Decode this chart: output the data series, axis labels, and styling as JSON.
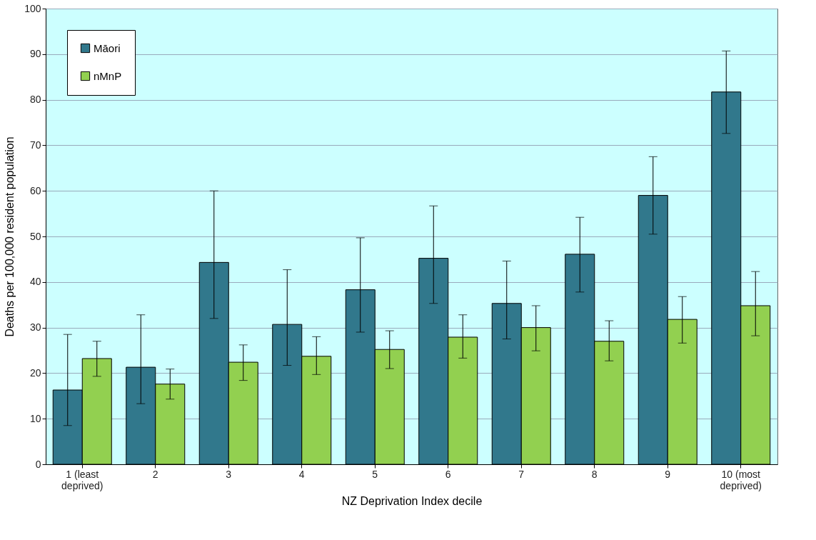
{
  "chart_data": {
    "type": "bar",
    "xlabel": "NZ Deprivation Index decile",
    "ylabel": "Deaths per 100,000 resident population",
    "categories": [
      "1 (least\ndeprived)",
      "2",
      "3",
      "4",
      "5",
      "6",
      "7",
      "8",
      "9",
      "10 (most\ndeprived)"
    ],
    "series": [
      {
        "name": "Māori",
        "color": "#31788c",
        "values": [
          16.3,
          21.3,
          44.3,
          30.7,
          38.3,
          45.2,
          35.3,
          46.1,
          59,
          81.7
        ],
        "errors": [
          [
            8.5,
            28.5
          ],
          [
            13.3,
            32.8
          ],
          [
            32,
            60
          ],
          [
            21.7,
            42.7
          ],
          [
            29,
            49.7
          ],
          [
            35.3,
            56.7
          ],
          [
            27.5,
            44.6
          ],
          [
            37.8,
            54.2
          ],
          [
            50.5,
            67.5
          ],
          [
            72.6,
            90.7
          ]
        ]
      },
      {
        "name": "nMnP",
        "color": "#92d050",
        "values": [
          23.2,
          17.6,
          22.4,
          23.7,
          25.2,
          27.9,
          30,
          27,
          31.8,
          34.8
        ],
        "errors": [
          [
            19.3,
            27
          ],
          [
            14.3,
            20.9
          ],
          [
            18.4,
            26.2
          ],
          [
            19.7,
            28
          ],
          [
            21,
            29.3
          ],
          [
            23.3,
            32.8
          ],
          [
            24.9,
            34.8
          ],
          [
            22.7,
            31.5
          ],
          [
            26.6,
            36.8
          ],
          [
            28.2,
            42.3
          ]
        ]
      }
    ],
    "ylim": [
      0,
      100
    ],
    "yticks": [
      0,
      10,
      20,
      30,
      40,
      50,
      60,
      70,
      80,
      90,
      100
    ],
    "grid": "y",
    "legend": "top left"
  }
}
